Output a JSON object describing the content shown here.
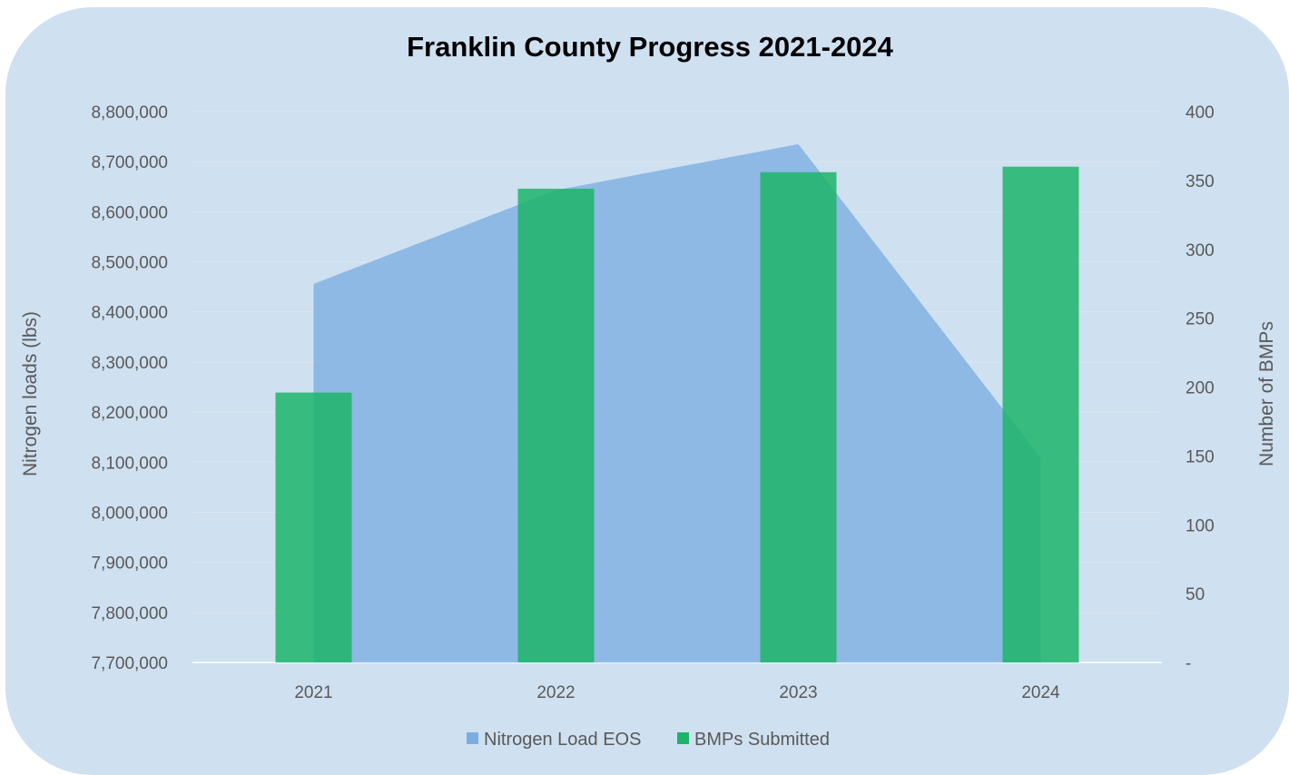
{
  "chart_data": {
    "type": "bar",
    "title": "Franklin County Progress 2021-2024",
    "categories": [
      "2021",
      "2022",
      "2023",
      "2024"
    ],
    "series": [
      {
        "name": "Nitrogen Load EOS",
        "kind": "area",
        "axis": "left",
        "color": "#7aaee0",
        "values": [
          8456000,
          8643000,
          8735000,
          8108000
        ]
      },
      {
        "name": "BMPs Submitted",
        "kind": "bar",
        "axis": "right",
        "color": "#1db46a",
        "values": [
          196,
          344,
          356,
          360
        ]
      }
    ],
    "y_left": {
      "label": "Nitrogen loads (lbs)",
      "min": 7700000,
      "max": 8800000,
      "ticks": [
        "7,700,000",
        "7,800,000",
        "7,900,000",
        "8,000,000",
        "8,100,000",
        "8,200,000",
        "8,300,000",
        "8,400,000",
        "8,500,000",
        "8,600,000",
        "8,700,000",
        "8,800,000"
      ]
    },
    "y_right": {
      "label": "Number of BMPs",
      "min": 0,
      "max": 400,
      "ticks": [
        "-",
        "50",
        "100",
        "150",
        "200",
        "250",
        "300",
        "350",
        "400"
      ]
    },
    "grid": true,
    "legend_position": "bottom",
    "background_color": "#cfe0f0"
  }
}
